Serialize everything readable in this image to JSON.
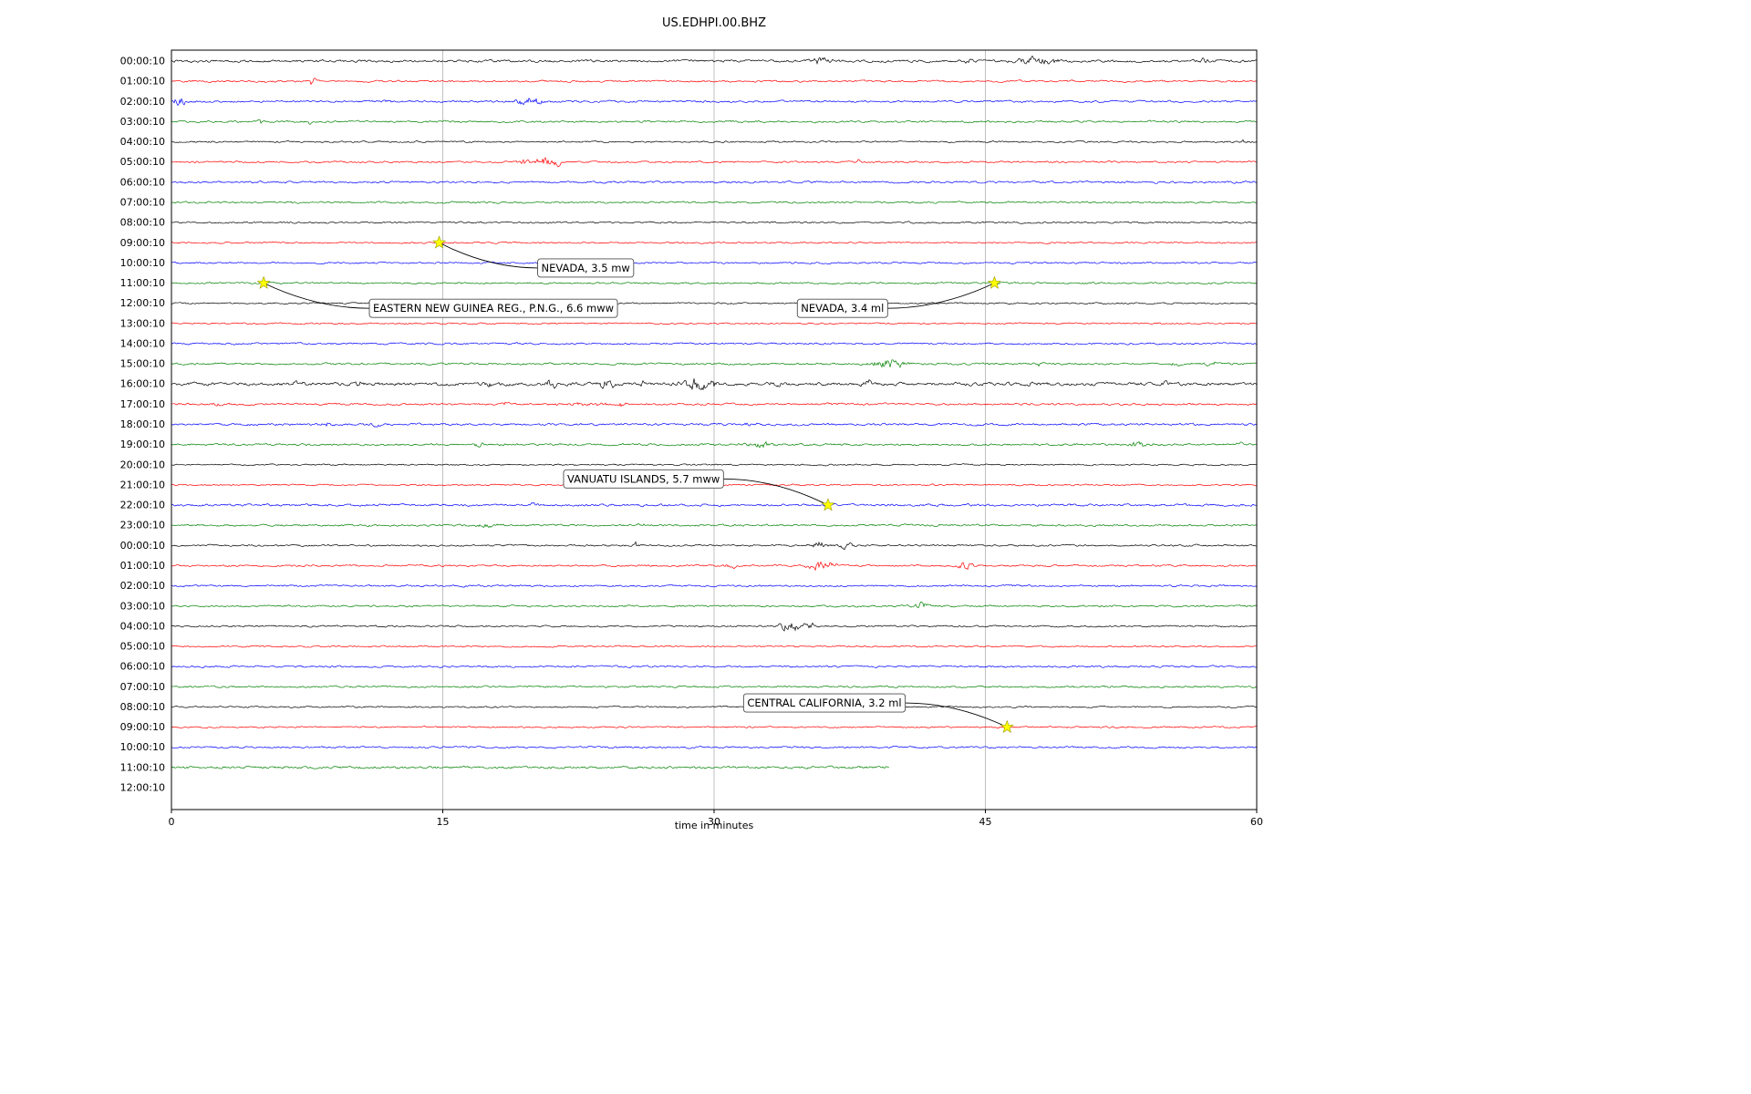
{
  "chart_data": {
    "type": "line",
    "title": "US.EDHPI.00.BHZ",
    "xlabel": "time in minutes",
    "x_ticks": [
      0,
      15,
      30,
      45,
      60
    ],
    "x_range": [
      0,
      60
    ],
    "grid": "vertical-only",
    "colors": {
      "trace_cycle": [
        "#000000",
        "#ff0000",
        "#0000ff",
        "#008000"
      ],
      "grid": "#b0b0b0",
      "star_fill": "#ffff00",
      "annotation_box_border": "#4d4d4d",
      "annotation_box_fill": "#ffffff"
    },
    "rows": [
      {
        "label": "00:00:10",
        "color": "#000000",
        "extent": 60,
        "noise": 1.6,
        "bursts": [
          [
            36,
            0.6,
            5
          ],
          [
            44,
            0.3,
            3
          ],
          [
            47.8,
            1.2,
            6
          ],
          [
            57,
            0.5,
            3
          ]
        ]
      },
      {
        "label": "01:00:10",
        "color": "#ff0000",
        "extent": 60,
        "noise": 1.2,
        "bursts": [
          [
            7.8,
            0.15,
            7
          ],
          [
            5.2,
            0.1,
            3
          ]
        ]
      },
      {
        "label": "02:00:10",
        "color": "#0000ff",
        "extent": 60,
        "noise": 1.3,
        "bursts": [
          [
            0.4,
            0.4,
            6
          ],
          [
            19.8,
            0.8,
            6
          ],
          [
            12,
            0.2,
            2.5
          ]
        ]
      },
      {
        "label": "03:00:10",
        "color": "#008000",
        "extent": 60,
        "noise": 1.3,
        "bursts": [
          [
            4.9,
            0.12,
            6
          ],
          [
            7.6,
            0.12,
            5
          ]
        ]
      },
      {
        "label": "04:00:10",
        "color": "#000000",
        "extent": 60,
        "noise": 1.1,
        "bursts": [
          [
            59.3,
            0.2,
            3
          ]
        ]
      },
      {
        "label": "05:00:10",
        "color": "#ff0000",
        "extent": 60,
        "noise": 1.2,
        "bursts": [
          [
            20.8,
            0.7,
            8
          ],
          [
            19.5,
            0.4,
            4
          ],
          [
            38,
            0.2,
            3
          ]
        ]
      },
      {
        "label": "06:00:10",
        "color": "#0000ff",
        "extent": 60,
        "noise": 1.3,
        "bursts": []
      },
      {
        "label": "07:00:10",
        "color": "#008000",
        "extent": 60,
        "noise": 1.2,
        "bursts": []
      },
      {
        "label": "08:00:10",
        "color": "#000000",
        "extent": 60,
        "noise": 1.1,
        "bursts": []
      },
      {
        "label": "09:00:10",
        "color": "#ff0000",
        "extent": 60,
        "noise": 1.0,
        "bursts": []
      },
      {
        "label": "10:00:10",
        "color": "#0000ff",
        "extent": 60,
        "noise": 1.1,
        "bursts": []
      },
      {
        "label": "11:00:10",
        "color": "#008000",
        "extent": 60,
        "noise": 1.1,
        "bursts": []
      },
      {
        "label": "12:00:10",
        "color": "#000000",
        "extent": 60,
        "noise": 1.0,
        "bursts": []
      },
      {
        "label": "13:00:10",
        "color": "#ff0000",
        "extent": 60,
        "noise": 1.0,
        "bursts": []
      },
      {
        "label": "14:00:10",
        "color": "#0000ff",
        "extent": 60,
        "noise": 1.2,
        "bursts": []
      },
      {
        "label": "15:00:10",
        "color": "#008000",
        "extent": 60,
        "noise": 1.3,
        "bursts": [
          [
            39.8,
            1.0,
            7
          ],
          [
            55.5,
            0.3,
            4
          ],
          [
            57.5,
            0.3,
            4
          ],
          [
            48,
            0.2,
            2.5
          ]
        ]
      },
      {
        "label": "16:00:10",
        "color": "#000000",
        "extent": 60,
        "noise": 2.0,
        "bursts": [
          [
            7,
            0.3,
            4
          ],
          [
            10.5,
            0.25,
            5
          ],
          [
            17.5,
            0.3,
            4
          ],
          [
            21,
            0.4,
            5
          ],
          [
            24,
            0.5,
            6
          ],
          [
            26,
            0.3,
            4
          ],
          [
            29,
            0.8,
            8
          ],
          [
            30,
            0.3,
            5
          ],
          [
            33.5,
            0.4,
            4
          ],
          [
            38.5,
            0.3,
            6
          ],
          [
            47.5,
            0.4,
            3
          ],
          [
            55,
            0.3,
            3
          ]
        ]
      },
      {
        "label": "17:00:10",
        "color": "#ff0000",
        "extent": 60,
        "noise": 1.3,
        "bursts": [
          [
            2.5,
            0.2,
            4
          ],
          [
            18.5,
            0.15,
            6
          ],
          [
            25,
            0.2,
            6
          ],
          [
            23,
            1.5,
            2
          ]
        ]
      },
      {
        "label": "18:00:10",
        "color": "#0000ff",
        "extent": 60,
        "noise": 1.4,
        "bursts": [
          [
            8.7,
            0.3,
            4
          ],
          [
            11.3,
            0.3,
            4
          ],
          [
            32,
            0.3,
            2.5
          ]
        ]
      },
      {
        "label": "19:00:10",
        "color": "#008000",
        "extent": 60,
        "noise": 1.3,
        "bursts": [
          [
            17,
            0.4,
            3
          ],
          [
            32.5,
            0.8,
            4
          ],
          [
            53.5,
            0.5,
            5
          ],
          [
            59,
            0.3,
            3
          ]
        ]
      },
      {
        "label": "20:00:10",
        "color": "#000000",
        "extent": 60,
        "noise": 1.0,
        "bursts": []
      },
      {
        "label": "21:00:10",
        "color": "#ff0000",
        "extent": 60,
        "noise": 1.0,
        "bursts": []
      },
      {
        "label": "22:00:10",
        "color": "#0000ff",
        "extent": 60,
        "noise": 1.5,
        "bursts": [
          [
            20,
            0.3,
            2
          ]
        ]
      },
      {
        "label": "23:00:10",
        "color": "#008000",
        "extent": 60,
        "noise": 1.3,
        "bursts": [
          [
            17.5,
            0.5,
            4
          ],
          [
            26,
            0.3,
            3
          ]
        ]
      },
      {
        "label": "00:00:10",
        "color": "#000000",
        "extent": 60,
        "noise": 1.2,
        "bursts": [
          [
            25.7,
            0.15,
            6
          ],
          [
            35.8,
            0.5,
            6
          ],
          [
            37.3,
            0.4,
            5
          ]
        ]
      },
      {
        "label": "01:00:10",
        "color": "#ff0000",
        "extent": 60,
        "noise": 1.2,
        "bursts": [
          [
            31,
            0.3,
            4
          ],
          [
            35.8,
            0.6,
            7
          ],
          [
            36.5,
            0.3,
            5
          ],
          [
            43.8,
            0.5,
            5
          ]
        ]
      },
      {
        "label": "02:00:10",
        "color": "#0000ff",
        "extent": 60,
        "noise": 1.2,
        "bursts": []
      },
      {
        "label": "03:00:10",
        "color": "#008000",
        "extent": 60,
        "noise": 1.2,
        "bursts": [
          [
            41.5,
            0.4,
            6
          ]
        ]
      },
      {
        "label": "04:00:10",
        "color": "#000000",
        "extent": 60,
        "noise": 1.1,
        "bursts": [
          [
            34.2,
            0.7,
            8
          ],
          [
            35.3,
            0.3,
            6
          ]
        ]
      },
      {
        "label": "05:00:10",
        "color": "#ff0000",
        "extent": 60,
        "noise": 1.0,
        "bursts": []
      },
      {
        "label": "06:00:10",
        "color": "#0000ff",
        "extent": 60,
        "noise": 1.2,
        "bursts": []
      },
      {
        "label": "07:00:10",
        "color": "#008000",
        "extent": 60,
        "noise": 1.2,
        "bursts": []
      },
      {
        "label": "08:00:10",
        "color": "#000000",
        "extent": 60,
        "noise": 1.0,
        "bursts": []
      },
      {
        "label": "09:00:10",
        "color": "#ff0000",
        "extent": 60,
        "noise": 1.0,
        "bursts": []
      },
      {
        "label": "10:00:10",
        "color": "#0000ff",
        "extent": 60,
        "noise": 1.2,
        "bursts": []
      },
      {
        "label": "11:00:10",
        "color": "#008000",
        "extent": 39.7,
        "noise": 1.5,
        "bursts": []
      },
      {
        "label": "12:00:10",
        "color": "#000000",
        "extent": 0,
        "noise": 0,
        "bursts": []
      }
    ],
    "events": [
      {
        "text": "NEVADA, 3.5 mw",
        "star_row": 9,
        "star_x": 14.8,
        "box_x": 22.9,
        "box_row": 10.25
      },
      {
        "text": "EASTERN NEW GUINEA REG., P.N.G., 6.6 mww",
        "star_row": 11,
        "star_x": 5.1,
        "box_x": 17.8,
        "box_row": 12.25
      },
      {
        "text": "NEVADA, 3.4 ml",
        "star_row": 11,
        "star_x": 45.5,
        "box_x": 37.1,
        "box_row": 12.25
      },
      {
        "text": "VANUATU ISLANDS, 5.7 mww",
        "star_row": 22,
        "star_x": 36.3,
        "box_x": 26.1,
        "box_row": 20.7
      },
      {
        "text": "CENTRAL CALIFORNIA, 3.2 ml",
        "star_row": 33,
        "star_x": 46.2,
        "box_x": 36.1,
        "box_row": 31.8
      }
    ]
  }
}
